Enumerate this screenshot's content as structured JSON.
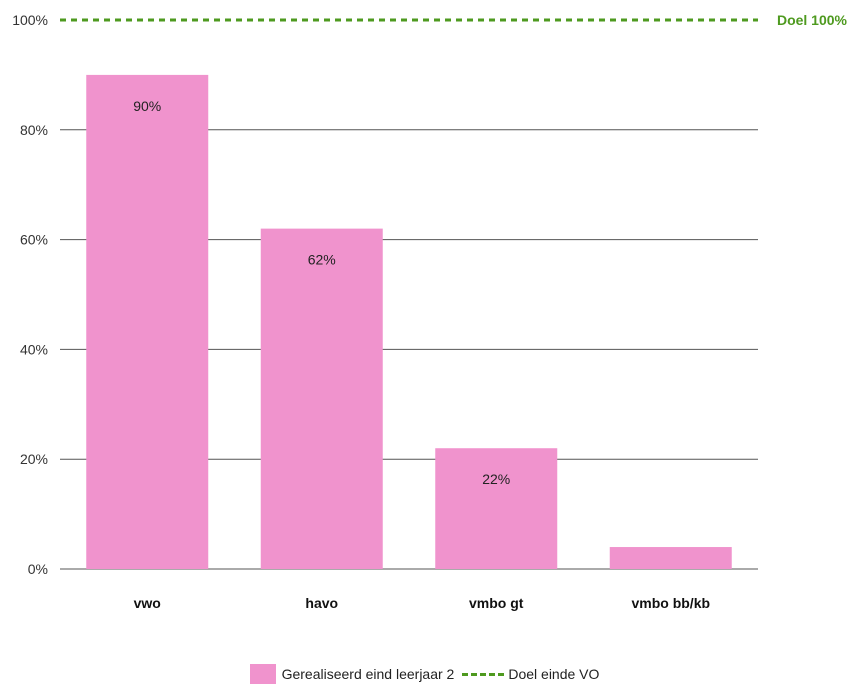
{
  "chart_data": {
    "type": "bar",
    "categories": [
      "vwo",
      "havo",
      "vmbo gt",
      "vmbo bb/kb"
    ],
    "series": [
      {
        "name": "Gerealiseerd eind leerjaar 2",
        "values": [
          90,
          62,
          22,
          4
        ],
        "data_labels": [
          "90%",
          "62%",
          "22%",
          ""
        ],
        "color": "#f093cd"
      }
    ],
    "target": {
      "name": "Doel einde VO",
      "value": 100,
      "label": "Doel 100%",
      "color": "#4e9a1f"
    },
    "ylim": [
      0,
      100
    ],
    "yticks": [
      0,
      20,
      40,
      60,
      80,
      100
    ],
    "ytick_labels": [
      "0%",
      "20%",
      "40%",
      "60%",
      "80%",
      "100%"
    ],
    "grid": true,
    "legend_position": "bottom-center",
    "title": "",
    "xlabel": "",
    "ylabel": ""
  }
}
